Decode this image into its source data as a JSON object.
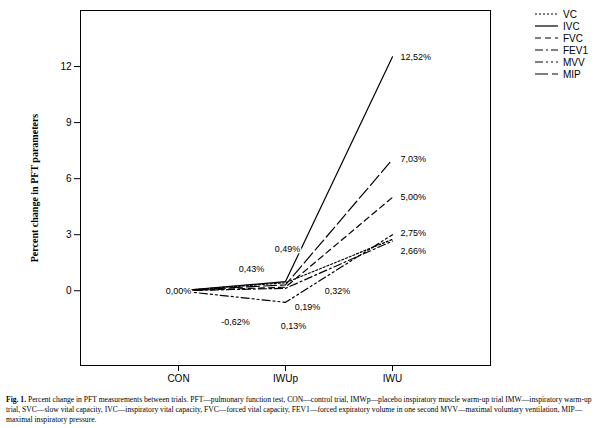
{
  "chart_data": {
    "type": "line",
    "caption_title": "Fig. 1.",
    "caption": "Percent change in PFT measurements between trials. PFT—pulmonary function test, CON—control trial, IMWp—placebo inspiratory muscle warm-up trial IMW—inspiratory warm-up trial, SVC—slow vital capacity, IVC—inspiratory vital capacity, FVC—forced vital capacity, FEV1—forced expiratory volume in one second MVV—maximal voluntary ventilation, MIP—maximal inspiratory pressure.",
    "y_label": "Percent change in PFT parameters",
    "categories": [
      "CON",
      "IWUp",
      "IWU"
    ],
    "series": [
      {
        "name": "VC",
        "color": "#000000",
        "line_style": "dotted",
        "values": [
          0,
          0.43,
          2.75
        ],
        "value_labels": [
          null,
          "0,43%",
          "2,75%"
        ]
      },
      {
        "name": "IVC",
        "color": "#000000",
        "line_style": "solid",
        "values": [
          0,
          0.49,
          12.52
        ],
        "value_labels": [
          "0,00%",
          "0,49%",
          "12,52%"
        ]
      },
      {
        "name": "FVC",
        "color": "#000000",
        "line_style": "dashed",
        "values": [
          0,
          0.19,
          5.0
        ],
        "value_labels": [
          null,
          "0,19%",
          "5,00%"
        ]
      },
      {
        "name": "FEV1",
        "color": "#000000",
        "line_style": "dashdot",
        "values": [
          0,
          0.13,
          2.66
        ],
        "value_labels": [
          null,
          "0,13%",
          "2,66%"
        ]
      },
      {
        "name": "MVV",
        "color": "#000000",
        "line_style": "dashdotdot",
        "values": [
          0,
          -0.62,
          3.0
        ],
        "value_labels": [
          null,
          "-0,62%",
          null
        ]
      },
      {
        "name": "MIP",
        "color": "#000000",
        "line_style": "longdash",
        "values": [
          0,
          0.32,
          7.03
        ],
        "value_labels": [
          null,
          "0,32%",
          "7,03%"
        ]
      }
    ],
    "ylim": [
      -4,
      15
    ],
    "yticks": [
      0,
      3,
      6,
      9,
      12
    ],
    "data_labels": true,
    "legend": "top-right",
    "grid": false
  }
}
